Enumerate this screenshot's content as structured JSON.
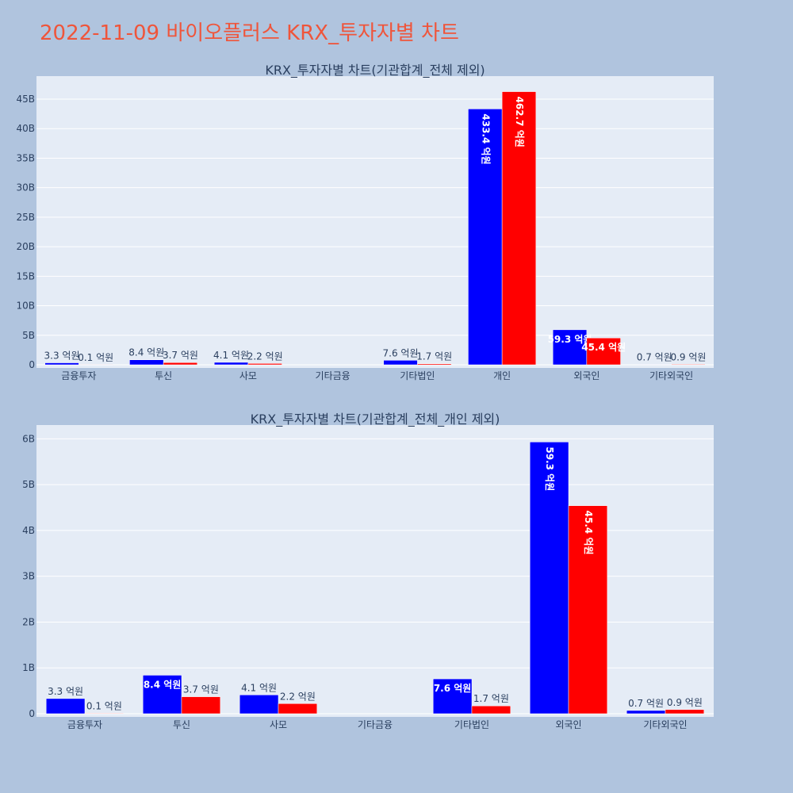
{
  "title": "2022-11-09 바이오플러스 KRX_투자자별 차트",
  "colors": {
    "background": "#b0c4de",
    "plot_bg": "#e5ecf6",
    "grid": "#ffffff",
    "title": "#ef553b",
    "text": "#2a3f5f"
  },
  "chart_data": [
    {
      "type": "bar",
      "title": "KRX_투자자별 차트(기관합계_전체 제외)",
      "categories": [
        "금융투자",
        "투신",
        "사모",
        "기타금융",
        "기타법인",
        "개인",
        "외국인",
        "기타외국인"
      ],
      "series": [
        {
          "color": "#0000ff",
          "values": [
            330000000,
            840000000,
            410000000,
            0,
            760000000,
            43340000000,
            5930000000,
            70000000
          ],
          "text": [
            "3.3 억원",
            "8.4 억원",
            "4.1 억원",
            "",
            "7.6 억원",
            "433.4 억원",
            "59.3 억원",
            "0.7 억원"
          ]
        },
        {
          "color": "#ff0000",
          "values": [
            10000000,
            370000000,
            220000000,
            0,
            170000000,
            46270000000,
            4540000000,
            90000000
          ],
          "text": [
            "0.1 억원",
            "3.7 억원",
            "2.2 억원",
            "",
            "1.7 억원",
            "462.7 억원",
            "45.4 억원",
            "0.9 억원"
          ]
        }
      ],
      "yticks": [
        0,
        5000000000,
        10000000000,
        15000000000,
        20000000000,
        25000000000,
        30000000000,
        35000000000,
        40000000000,
        45000000000
      ],
      "ytick_labels": [
        "0",
        "5B",
        "10B",
        "15B",
        "20B",
        "25B",
        "30B",
        "35B",
        "40B",
        "45B"
      ],
      "ylim": [
        0,
        48900000000
      ],
      "grid": true
    },
    {
      "type": "bar",
      "title": "KRX_투자자별 차트(기관합계_전체_개인 제외)",
      "categories": [
        "금융투자",
        "투신",
        "사모",
        "기타금융",
        "기타법인",
        "외국인",
        "기타외국인"
      ],
      "series": [
        {
          "color": "#0000ff",
          "values": [
            330000000,
            840000000,
            410000000,
            0,
            760000000,
            5930000000,
            70000000
          ],
          "text": [
            "3.3 억원",
            "8.4 억원",
            "4.1 억원",
            "",
            "7.6 억원",
            "59.3 억원",
            "0.7 억원"
          ]
        },
        {
          "color": "#ff0000",
          "values": [
            10000000,
            370000000,
            220000000,
            0,
            170000000,
            4540000000,
            90000000
          ],
          "text": [
            "0.1 억원",
            "3.7 억원",
            "2.2 억원",
            "",
            "1.7 억원",
            "45.4 억원",
            "0.9 억원"
          ]
        }
      ],
      "yticks": [
        0,
        1000000000,
        2000000000,
        3000000000,
        4000000000,
        5000000000,
        6000000000
      ],
      "ytick_labels": [
        "0",
        "1B",
        "2B",
        "3B",
        "4B",
        "5B",
        "6B"
      ],
      "ylim": [
        0,
        6300000000
      ],
      "grid": true
    }
  ]
}
